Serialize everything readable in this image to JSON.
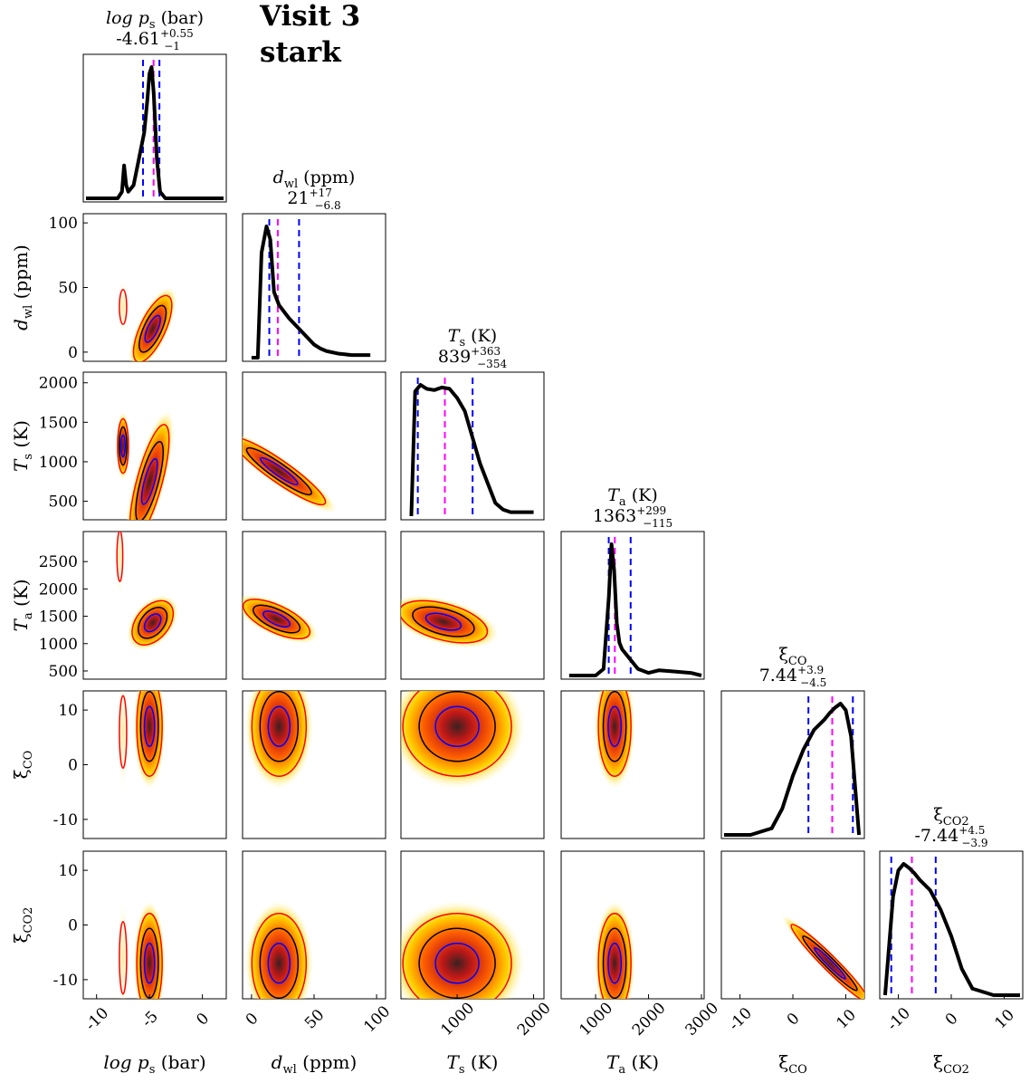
{
  "visit_title": "Visit 3",
  "stark_title": "stark",
  "chart_data": {
    "type": "corner",
    "parameters": [
      {
        "key": "logps",
        "label": "log p_s (bar)",
        "median": "-4.61",
        "err_plus": "+0.55",
        "err_minus": "−1",
        "ticks": [
          "-10",
          "-5",
          "0"
        ],
        "range": [
          -11,
          2
        ]
      },
      {
        "key": "dwl",
        "label": "d_wl (ppm)",
        "median": "21",
        "err_plus": "+17",
        "err_minus": "−6.8",
        "ticks": [
          "0",
          "50",
          "100"
        ],
        "range": [
          -5,
          105
        ]
      },
      {
        "key": "Ts",
        "label": "T_s (K)",
        "median": "839",
        "err_plus": "+363",
        "err_minus": "−354",
        "ticks_y": [
          "500",
          "1000",
          "1500",
          "2000"
        ],
        "ticks_x": [
          "1000",
          "2000"
        ],
        "range": [
          300,
          2100
        ]
      },
      {
        "key": "Ta",
        "label": "T_a (K)",
        "median": "1363",
        "err_plus": "+299",
        "err_minus": "−115",
        "ticks_y": [
          "500",
          "1000",
          "1500",
          "2000",
          "2500"
        ],
        "ticks_x": [
          "1000",
          "2000",
          "3000"
        ],
        "range": [
          400,
          3000
        ]
      },
      {
        "key": "xiCO",
        "label": "ξ_CO",
        "median": "7.44",
        "err_plus": "+3.9",
        "err_minus": "−4.5",
        "ticks": [
          "-10",
          "0",
          "10"
        ],
        "range": [
          -13,
          13
        ]
      },
      {
        "key": "xiCO2",
        "label": "ξ_CO2",
        "median": "-7.44",
        "err_plus": "+4.5",
        "err_minus": "−3.9",
        "ticks": [
          "-10",
          "0",
          "10"
        ],
        "range": [
          -13,
          13
        ]
      }
    ],
    "marginals": {
      "logps": {
        "x": [
          -11,
          -9.5,
          -8,
          -7.6,
          -7.4,
          -7.2,
          -7,
          -6.5,
          -6,
          -5.5,
          -5.2,
          -5,
          -4.8,
          -4.6,
          -4.3,
          -4,
          -3.5,
          -3,
          -2,
          2
        ],
        "y": [
          0,
          0,
          0,
          0.05,
          0.25,
          0.1,
          0.05,
          0.1,
          0.3,
          0.5,
          0.75,
          0.95,
          1.0,
          0.8,
          0.3,
          0.05,
          0,
          0,
          0,
          0
        ]
      },
      "dwl": {
        "x": [
          0,
          5,
          8,
          12,
          15,
          18,
          22,
          26,
          30,
          35,
          40,
          45,
          50,
          55,
          60,
          70,
          80,
          95
        ],
        "y": [
          0,
          0,
          0.8,
          1.0,
          0.9,
          0.5,
          0.4,
          0.35,
          0.3,
          0.25,
          0.2,
          0.15,
          0.1,
          0.07,
          0.05,
          0.03,
          0.02,
          0.02
        ]
      },
      "Ts": {
        "x": [
          400,
          450,
          520,
          600,
          700,
          800,
          900,
          1000,
          1100,
          1150,
          1200,
          1250,
          1300,
          1400,
          1500,
          1600,
          1700,
          2000
        ],
        "y": [
          0,
          0.95,
          1.0,
          0.97,
          0.96,
          0.98,
          0.97,
          0.9,
          0.8,
          0.7,
          0.6,
          0.5,
          0.4,
          0.25,
          0.1,
          0.05,
          0.03,
          0.03
        ]
      },
      "Ta": {
        "x": [
          500,
          1000,
          1150,
          1250,
          1300,
          1350,
          1400,
          1450,
          1500,
          1600,
          1700,
          1800,
          2000,
          2200,
          2500,
          2800,
          3000
        ],
        "y": [
          0,
          0,
          0.05,
          0.6,
          1.0,
          0.8,
          0.4,
          0.25,
          0.2,
          0.15,
          0.1,
          0.05,
          0.02,
          0.04,
          0.03,
          0.02,
          0
        ]
      },
      "xiCO": {
        "x": [
          -13,
          -8,
          -4,
          -2,
          0,
          2,
          4,
          6,
          7,
          8,
          9,
          10,
          11,
          12,
          12.5
        ],
        "y": [
          0,
          0,
          0.05,
          0.2,
          0.45,
          0.65,
          0.8,
          0.88,
          0.93,
          0.97,
          1.0,
          0.95,
          0.75,
          0.25,
          0
        ]
      },
      "xiCO2": {
        "x": [
          -12.5,
          -12,
          -11,
          -10,
          -9,
          -8,
          -7,
          -6,
          -4,
          -2,
          0,
          2,
          4,
          8,
          13
        ],
        "y": [
          0,
          0.25,
          0.75,
          0.95,
          1.0,
          0.97,
          0.93,
          0.88,
          0.8,
          0.65,
          0.45,
          0.2,
          0.05,
          0,
          0
        ]
      }
    },
    "quantile_lines": {
      "logps": {
        "median": -4.61,
        "lo": -5.61,
        "hi": -4.06
      },
      "dwl": {
        "median": 21,
        "lo": 14.2,
        "hi": 38
      },
      "Ts": {
        "median": 839,
        "lo": 485,
        "hi": 1202
      },
      "Ta": {
        "median": 1363,
        "lo": 1248,
        "hi": 1662
      },
      "xiCO": {
        "median": 7.44,
        "lo": 2.94,
        "hi": 11.34
      },
      "xiCO2": {
        "median": -7.44,
        "lo": -11.34,
        "hi": -2.94
      }
    },
    "line_colors": {
      "median": "#ff00ff",
      "quantile": "#0000ff",
      "hist": "#000000"
    },
    "contour_colors": {
      "outer": "#ff0000",
      "middle": "#000000",
      "inner": "#0000ff"
    },
    "heat_colors": [
      "#fff7c0",
      "#ffd400",
      "#ff6000",
      "#c01818",
      "#3c2020"
    ]
  }
}
